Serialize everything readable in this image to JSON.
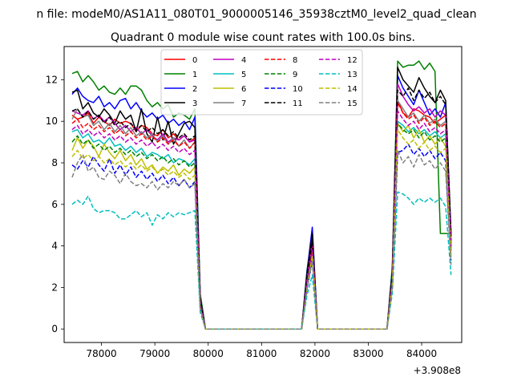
{
  "suptitle": "n file: modeM0/AS1A11_080T01_9000005146_35938cztM0_level2_quad_clean",
  "chart_data": {
    "type": "line",
    "title": "Quadrant 0 module wise count rates with 100.0s bins.",
    "xlabel": "",
    "ylabel": "",
    "x_offset_label": "+3.908e8",
    "xlim": [
      77300,
      84750
    ],
    "ylim": [
      -0.65,
      13.6
    ],
    "xticks": [
      78000,
      79000,
      80000,
      81000,
      82000,
      83000,
      84000
    ],
    "xtick_labels": [
      "78000",
      "79000",
      "80000",
      "81000",
      "82000",
      "83000",
      "84000"
    ],
    "yticks": [
      0,
      2,
      4,
      6,
      8,
      10,
      12
    ],
    "ytick_labels": [
      "0",
      "2",
      "4",
      "6",
      "8",
      "10",
      "12"
    ],
    "grid": false,
    "legend_placement": "upper center",
    "legend_columns": 4,
    "segments": [
      {
        "x_start": 77450,
        "n": 24
      },
      {
        "x_start": 79850,
        "n": 20
      },
      {
        "x_start": 81850,
        "n": 2
      },
      {
        "x_start": 82050,
        "n": 15
      },
      {
        "x_start": 83550,
        "n": 11
      }
    ],
    "series": [
      {
        "name": "0",
        "color": "#ff0000",
        "style": "solid",
        "values": [
          10.3,
          10.1,
          10.2,
          10.4,
          9.9,
          10.2,
          10.0,
          9.8,
          10.1,
          9.9,
          10.0,
          9.9,
          9.5,
          9.8,
          9.7,
          9.4,
          9.3,
          9.6,
          9.2,
          9.4,
          9.1,
          9.3,
          9.0,
          9.2,
          1.3,
          0,
          0,
          0,
          0,
          0,
          0,
          0,
          0,
          0,
          0,
          0,
          0,
          0,
          0,
          0,
          0,
          0,
          0,
          0,
          2.5,
          4.1,
          0,
          0,
          0,
          0,
          0,
          0,
          0,
          0,
          0,
          0,
          0,
          0,
          0,
          0,
          2.5,
          11.0,
          10.4,
          10.2,
          10.6,
          10.5,
          10.3,
          10.2,
          9.9,
          10.1,
          10.3,
          4.0
        ]
      },
      {
        "name": "1",
        "color": "#008000",
        "style": "solid",
        "values": [
          12.3,
          12.4,
          11.9,
          12.2,
          11.9,
          11.5,
          11.7,
          11.4,
          11.3,
          11.6,
          11.3,
          11.7,
          11.7,
          11.5,
          11.0,
          10.7,
          10.9,
          10.6,
          10.8,
          10.2,
          10.4,
          10.3,
          10.1,
          10.6,
          1.7,
          0,
          0,
          0,
          0,
          0,
          0,
          0,
          0,
          0,
          0,
          0,
          0,
          0,
          0,
          0,
          0,
          0,
          0,
          0,
          2.8,
          4.6,
          0,
          0,
          0,
          0,
          0,
          0,
          0,
          0,
          0,
          0,
          0,
          0,
          0,
          0,
          3.0,
          12.9,
          12.6,
          12.7,
          12.7,
          12.9,
          12.5,
          12.8,
          12.4,
          4.6,
          4.6,
          4.6
        ]
      },
      {
        "name": "2",
        "color": "#0000ff",
        "style": "solid",
        "values": [
          11.3,
          11.6,
          11.2,
          11.0,
          10.9,
          11.2,
          10.7,
          10.9,
          10.6,
          11.0,
          11.1,
          10.6,
          10.9,
          10.5,
          10.2,
          10.4,
          10.1,
          10.3,
          9.9,
          10.1,
          9.8,
          10.0,
          9.6,
          10.2,
          1.5,
          0,
          0,
          0,
          0,
          0,
          0,
          0,
          0,
          0,
          0,
          0,
          0,
          0,
          0,
          0,
          0,
          0,
          0,
          0,
          2.7,
          4.9,
          0,
          0,
          0,
          0,
          0,
          0,
          0,
          0,
          0,
          0,
          0,
          0,
          0,
          0,
          2.8,
          12.2,
          11.6,
          11.2,
          10.8,
          11.5,
          10.9,
          10.3,
          10.6,
          10.2,
          10.9,
          4.5
        ]
      },
      {
        "name": "3",
        "color": "#000000",
        "style": "solid",
        "values": [
          11.4,
          11.5,
          10.6,
          10.9,
          10.4,
          10.2,
          10.6,
          10.3,
          9.9,
          10.5,
          10.1,
          10.3,
          9.5,
          10.6,
          9.4,
          9.0,
          10.2,
          9.1,
          10.0,
          8.9,
          9.4,
          9.9,
          10.0,
          9.7,
          1.5,
          0,
          0,
          0,
          0,
          0,
          0,
          0,
          0,
          0,
          0,
          0,
          0,
          0,
          0,
          0,
          0,
          0,
          0,
          0,
          2.6,
          4.6,
          0,
          0,
          0,
          0,
          0,
          0,
          0,
          0,
          0,
          0,
          0,
          0,
          0,
          0,
          2.7,
          12.6,
          12.0,
          11.7,
          11.4,
          12.1,
          11.6,
          11.2,
          10.9,
          11.5,
          11.0,
          4.6
        ]
      },
      {
        "name": "4",
        "color": "#bf00bf",
        "style": "solid",
        "values": [
          10.5,
          10.4,
          10.3,
          10.5,
          10.1,
          10.3,
          10.0,
          10.2,
          9.9,
          9.6,
          9.8,
          9.5,
          9.7,
          9.4,
          9.6,
          9.3,
          9.1,
          9.4,
          9.0,
          9.2,
          9.1,
          9.3,
          9.0,
          9.1,
          1.3,
          0,
          0,
          0,
          0,
          0,
          0,
          0,
          0,
          0,
          0,
          0,
          0,
          0,
          0,
          0,
          0,
          0,
          0,
          0,
          2.4,
          4.2,
          0,
          0,
          0,
          0,
          0,
          0,
          0,
          0,
          0,
          0,
          0,
          0,
          0,
          0,
          2.5,
          11.8,
          11.2,
          10.8,
          10.5,
          10.7,
          10.4,
          10.6,
          10.2,
          10.5,
          10.3,
          4.2
        ]
      },
      {
        "name": "5",
        "color": "#00bfbf",
        "style": "solid",
        "values": [
          9.5,
          9.6,
          9.2,
          9.4,
          9.0,
          9.1,
          8.9,
          9.2,
          8.8,
          8.9,
          8.6,
          8.8,
          8.5,
          8.7,
          8.3,
          8.5,
          8.4,
          8.2,
          8.4,
          8.0,
          8.2,
          8.1,
          7.9,
          8.2,
          1.2,
          0,
          0,
          0,
          0,
          0,
          0,
          0,
          0,
          0,
          0,
          0,
          0,
          0,
          0,
          0,
          0,
          0,
          0,
          0,
          2.2,
          3.7,
          0,
          0,
          0,
          0,
          0,
          0,
          0,
          0,
          0,
          0,
          0,
          0,
          0,
          0,
          2.3,
          10.0,
          9.8,
          9.5,
          9.7,
          9.4,
          9.6,
          9.3,
          9.5,
          9.2,
          9.4,
          3.8
        ]
      },
      {
        "name": "6",
        "color": "#bfbf00",
        "style": "solid",
        "values": [
          8.6,
          9.2,
          8.7,
          9.1,
          8.8,
          8.3,
          8.9,
          8.5,
          8.2,
          8.6,
          8.1,
          8.4,
          7.9,
          8.2,
          7.7,
          7.9,
          7.5,
          7.8,
          7.6,
          7.9,
          7.4,
          7.7,
          7.5,
          7.8,
          1.1,
          0,
          0,
          0,
          0,
          0,
          0,
          0,
          0,
          0,
          0,
          0,
          0,
          0,
          0,
          0,
          0,
          0,
          0,
          0,
          2.1,
          3.6,
          0,
          0,
          0,
          0,
          0,
          0,
          0,
          0,
          0,
          0,
          0,
          0,
          0,
          0,
          2.2,
          9.9,
          9.5,
          9.8,
          9.2,
          9.6,
          9.0,
          9.3,
          8.9,
          9.2,
          8.8,
          3.5
        ]
      },
      {
        "name": "7",
        "color": "#808080",
        "style": "solid",
        "values": [
          10.1,
          10.6,
          10.2,
          10.3,
          9.8,
          10.0,
          9.6,
          9.9,
          9.5,
          9.8,
          9.4,
          9.7,
          9.3,
          9.5,
          9.2,
          9.4,
          9.0,
          9.3,
          8.9,
          9.2,
          8.8,
          9.1,
          8.7,
          9.0,
          1.2,
          0,
          0,
          0,
          0,
          0,
          0,
          0,
          0,
          0,
          0,
          0,
          0,
          0,
          0,
          0,
          0,
          0,
          0,
          0,
          2.3,
          3.9,
          0,
          0,
          0,
          0,
          0,
          0,
          0,
          0,
          0,
          0,
          0,
          0,
          0,
          0,
          2.4,
          11.0,
          10.6,
          10.2,
          10.4,
          10.0,
          10.3,
          9.9,
          10.1,
          9.8,
          10.0,
          4.0
        ]
      },
      {
        "name": "8",
        "color": "#ff0000",
        "style": "dashed",
        "values": [
          9.9,
          10.1,
          9.7,
          9.9,
          9.6,
          9.8,
          9.5,
          9.7,
          9.4,
          9.6,
          9.3,
          9.5,
          9.2,
          9.4,
          9.1,
          9.3,
          9.0,
          9.2,
          8.9,
          9.1,
          8.8,
          9.0,
          8.7,
          9.0,
          1.2,
          0,
          0,
          0,
          0,
          0,
          0,
          0,
          0,
          0,
          0,
          0,
          0,
          0,
          0,
          0,
          0,
          0,
          0,
          0,
          2.3,
          3.9,
          0,
          0,
          0,
          0,
          0,
          0,
          0,
          0,
          0,
          0,
          0,
          0,
          0,
          0,
          2.4,
          10.9,
          10.4,
          10.1,
          10.3,
          9.9,
          10.2,
          9.8,
          10.0,
          9.7,
          9.9,
          4.0
        ]
      },
      {
        "name": "9",
        "color": "#008000",
        "style": "dashed",
        "values": [
          9.0,
          9.3,
          8.9,
          9.1,
          8.7,
          8.9,
          8.6,
          8.8,
          8.5,
          8.7,
          8.4,
          8.6,
          8.3,
          8.5,
          8.2,
          8.4,
          8.1,
          8.3,
          8.0,
          8.2,
          7.9,
          8.1,
          7.8,
          8.0,
          1.1,
          0,
          0,
          0,
          0,
          0,
          0,
          0,
          0,
          0,
          0,
          0,
          0,
          0,
          0,
          0,
          0,
          0,
          0,
          0,
          2.1,
          3.6,
          0,
          0,
          0,
          0,
          0,
          0,
          0,
          0,
          0,
          0,
          0,
          0,
          0,
          0,
          2.2,
          9.9,
          9.6,
          9.4,
          9.6,
          9.2,
          9.5,
          9.1,
          9.3,
          9.0,
          9.2,
          3.7
        ]
      },
      {
        "name": "10",
        "color": "#0000ff",
        "style": "dashed",
        "values": [
          7.9,
          7.7,
          8.1,
          7.8,
          8.3,
          7.9,
          7.6,
          8.2,
          7.5,
          7.9,
          7.4,
          7.8,
          7.3,
          7.6,
          7.2,
          7.5,
          7.1,
          7.4,
          7.0,
          7.3,
          6.9,
          7.2,
          6.8,
          7.1,
          1.0,
          0,
          0,
          0,
          0,
          0,
          0,
          0,
          0,
          0,
          0,
          0,
          0,
          0,
          0,
          0,
          0,
          0,
          0,
          0,
          1.9,
          3.3,
          0,
          0,
          0,
          0,
          0,
          0,
          0,
          0,
          0,
          0,
          0,
          0,
          0,
          0,
          2.0,
          8.5,
          8.6,
          8.9,
          8.4,
          8.7,
          8.3,
          8.6,
          8.2,
          8.5,
          8.1,
          3.3
        ]
      },
      {
        "name": "11",
        "color": "#000000",
        "style": "dashed",
        "values": [
          10.5,
          10.6,
          10.2,
          10.5,
          10.1,
          10.3,
          9.9,
          10.2,
          9.8,
          10.0,
          9.7,
          9.9,
          9.6,
          9.8,
          9.5,
          9.7,
          9.4,
          9.6,
          9.3,
          9.5,
          9.2,
          9.4,
          9.1,
          9.3,
          1.3,
          0,
          0,
          0,
          0,
          0,
          0,
          0,
          0,
          0,
          0,
          0,
          0,
          0,
          0,
          0,
          0,
          0,
          0,
          0,
          2.5,
          4.2,
          0,
          0,
          0,
          0,
          0,
          0,
          0,
          0,
          0,
          0,
          0,
          0,
          0,
          0,
          2.6,
          11.5,
          11.2,
          11.6,
          11.0,
          11.5,
          11.1,
          11.4,
          10.9,
          11.2,
          10.8,
          4.3
        ]
      },
      {
        "name": "12",
        "color": "#bf00bf",
        "style": "dashed",
        "values": [
          9.6,
          9.8,
          9.4,
          9.6,
          9.3,
          9.5,
          9.2,
          9.4,
          9.1,
          9.3,
          9.0,
          9.2,
          8.9,
          9.1,
          8.8,
          9.0,
          8.7,
          8.9,
          8.6,
          8.8,
          8.5,
          8.7,
          8.4,
          8.6,
          1.2,
          0,
          0,
          0,
          0,
          0,
          0,
          0,
          0,
          0,
          0,
          0,
          0,
          0,
          0,
          0,
          0,
          0,
          0,
          0,
          2.2,
          3.8,
          0,
          0,
          0,
          0,
          0,
          0,
          0,
          0,
          0,
          0,
          0,
          0,
          0,
          0,
          2.3,
          10.5,
          10.1,
          9.8,
          10.0,
          9.6,
          9.9,
          9.5,
          9.7,
          9.4,
          9.6,
          3.9
        ]
      },
      {
        "name": "13",
        "color": "#00bfbf",
        "style": "dashed",
        "values": [
          6.0,
          6.2,
          6.0,
          6.4,
          5.8,
          5.6,
          5.7,
          5.7,
          5.6,
          5.3,
          5.3,
          5.5,
          5.7,
          5.4,
          5.6,
          5.0,
          5.5,
          5.3,
          5.6,
          5.4,
          5.6,
          5.5,
          5.6,
          5.7,
          0.8,
          0,
          0,
          0,
          0,
          0,
          0,
          0,
          0,
          0,
          0,
          0,
          0,
          0,
          0,
          0,
          0,
          0,
          0,
          0,
          1.6,
          2.6,
          0,
          0,
          0,
          0,
          0,
          0,
          0,
          0,
          0,
          0,
          0,
          0,
          0,
          0,
          1.7,
          6.6,
          6.5,
          6.3,
          6.0,
          6.3,
          6.1,
          6.3,
          6.1,
          6.3,
          5.9,
          2.6
        ]
      },
      {
        "name": "14",
        "color": "#bfbf00",
        "style": "dashed",
        "values": [
          8.3,
          8.6,
          8.2,
          8.4,
          8.1,
          8.3,
          8.0,
          8.2,
          7.9,
          8.1,
          7.8,
          8.0,
          7.7,
          7.9,
          7.6,
          7.8,
          7.5,
          7.7,
          7.4,
          7.6,
          7.3,
          7.5,
          7.2,
          7.4,
          1.0,
          0,
          0,
          0,
          0,
          0,
          0,
          0,
          0,
          0,
          0,
          0,
          0,
          0,
          0,
          0,
          0,
          0,
          0,
          0,
          2.0,
          3.5,
          0,
          0,
          0,
          0,
          0,
          0,
          0,
          0,
          0,
          0,
          0,
          0,
          0,
          0,
          2.1,
          9.6,
          9.2,
          8.9,
          9.1,
          8.7,
          9.0,
          8.6,
          8.8,
          8.5,
          8.7,
          3.5
        ]
      },
      {
        "name": "15",
        "color": "#808080",
        "style": "dashed",
        "values": [
          7.3,
          8.0,
          8.4,
          7.6,
          7.8,
          7.3,
          7.2,
          7.6,
          7.4,
          7.0,
          7.5,
          7.1,
          6.9,
          7.0,
          6.8,
          7.1,
          6.7,
          7.0,
          6.8,
          7.1,
          6.9,
          7.2,
          6.8,
          7.0,
          1.0,
          0,
          0,
          0,
          0,
          0,
          0,
          0,
          0,
          0,
          0,
          0,
          0,
          0,
          0,
          0,
          0,
          0,
          0,
          0,
          1.9,
          3.3,
          0,
          0,
          0,
          0,
          0,
          0,
          0,
          0,
          0,
          0,
          0,
          0,
          0,
          0,
          2.0,
          8.6,
          8.0,
          8.3,
          7.8,
          8.4,
          7.9,
          8.1,
          7.7,
          8.0,
          7.6,
          3.1
        ]
      }
    ]
  }
}
